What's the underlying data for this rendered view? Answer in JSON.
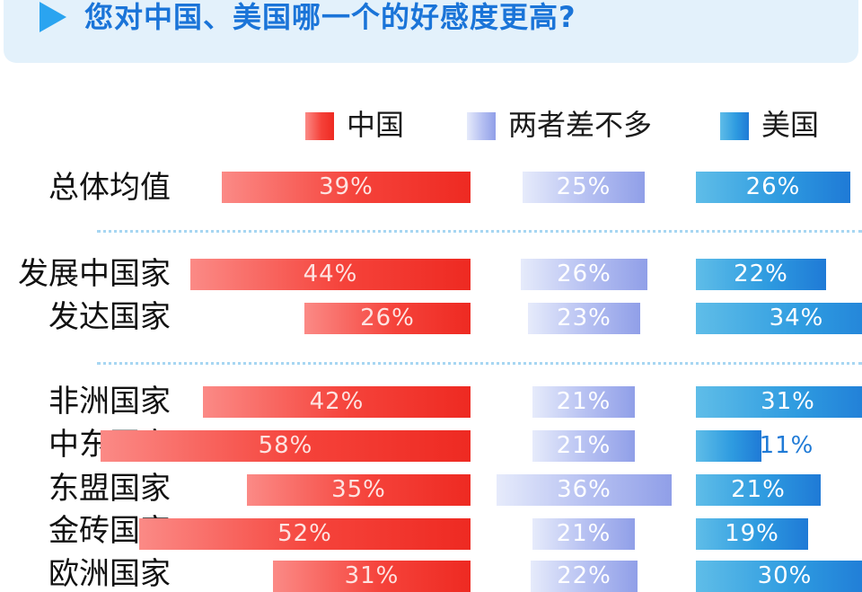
{
  "header": {
    "title": "您对中国、美国哪一个的好感度更高?"
  },
  "legend": [
    {
      "key": "china",
      "label": "中国"
    },
    {
      "key": "similar",
      "label": "两者差不多"
    },
    {
      "key": "usa",
      "label": "美国"
    }
  ],
  "colors": {
    "china": "#f5423a",
    "similar": "#a9b4ee",
    "usa": "#2e9be0",
    "title": "#1a74d8",
    "header_bg": "#e3f1fb"
  },
  "chart_data": {
    "type": "bar",
    "title": "您对中国、美国哪一个的好感度更高?",
    "categories": [
      "总体均值",
      "发展中国家",
      "发达国家",
      "非洲国家",
      "中东国家",
      "东盟国家",
      "金砖国家",
      "欧洲国家"
    ],
    "series": [
      {
        "name": "中国",
        "values": [
          39,
          44,
          26,
          42,
          58,
          35,
          52,
          31
        ],
        "labels": [
          "39%",
          "44%",
          "26%",
          "42%",
          "58%",
          "35%",
          "52%",
          "31%"
        ]
      },
      {
        "name": "两者差不多",
        "values": [
          25,
          26,
          23,
          21,
          21,
          36,
          21,
          22
        ],
        "labels": [
          "25%",
          "26%",
          "23%",
          "21%",
          "21%",
          "36%",
          "21%",
          "22%"
        ]
      },
      {
        "name": "美国",
        "values": [
          26,
          22,
          34,
          31,
          11,
          21,
          19,
          30
        ],
        "labels": [
          "26%",
          "22%",
          "34%",
          "31%",
          "11%",
          "21%",
          "19%",
          "30%"
        ]
      }
    ],
    "unit": "%",
    "legend_position": "top"
  }
}
